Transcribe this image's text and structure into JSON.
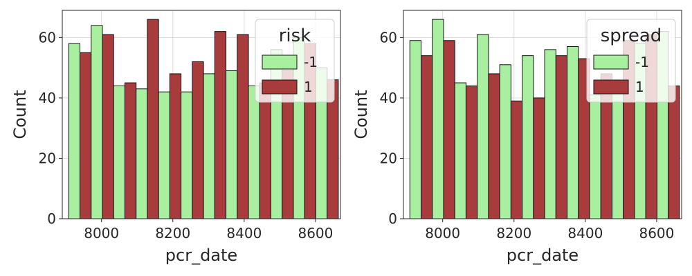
{
  "chart_data": [
    {
      "type": "histogram",
      "xlabel": "pcr_date",
      "ylabel": "Count",
      "xlim": [
        7890,
        8670
      ],
      "ylim": [
        0,
        69
      ],
      "xticks": [
        8000,
        8200,
        8400,
        8600
      ],
      "yticks": [
        0,
        20,
        40,
        60
      ],
      "grid": true,
      "legend": {
        "title": "risk",
        "placement": "top-right"
      },
      "bin_edges": [
        7908,
        7971,
        8034,
        8097,
        8160,
        8223,
        8286,
        8349,
        8412,
        8475,
        8538,
        8601,
        8664
      ],
      "series": [
        {
          "name": "-1",
          "color": "#a8f0a0",
          "values": [
            58,
            64,
            44,
            43,
            42,
            42,
            48,
            49,
            44,
            56,
            60,
            50
          ]
        },
        {
          "name": "1",
          "color": "#a83c3c",
          "values": [
            55,
            61,
            45,
            66,
            48,
            52,
            62,
            61,
            45,
            49,
            58,
            46
          ]
        }
      ]
    },
    {
      "type": "histogram",
      "xlabel": "pcr_date",
      "ylabel": "Count",
      "xlim": [
        7890,
        8670
      ],
      "ylim": [
        0,
        69
      ],
      "xticks": [
        8000,
        8200,
        8400,
        8600
      ],
      "yticks": [
        0,
        20,
        40,
        60
      ],
      "grid": true,
      "legend": {
        "title": "spread",
        "placement": "top-right"
      },
      "bin_edges": [
        7908,
        7971,
        8034,
        8097,
        8160,
        8223,
        8286,
        8349,
        8412,
        8475,
        8538,
        8601,
        8664
      ],
      "series": [
        {
          "name": "-1",
          "color": "#a8f0a0",
          "values": [
            59,
            66,
            45,
            61,
            51,
            54,
            56,
            57,
            41,
            44,
            58,
            62
          ]
        },
        {
          "name": "1",
          "color": "#a83c3c",
          "values": [
            54,
            59,
            44,
            48,
            39,
            40,
            54,
            53,
            48,
            59,
            61,
            44
          ]
        }
      ]
    }
  ]
}
